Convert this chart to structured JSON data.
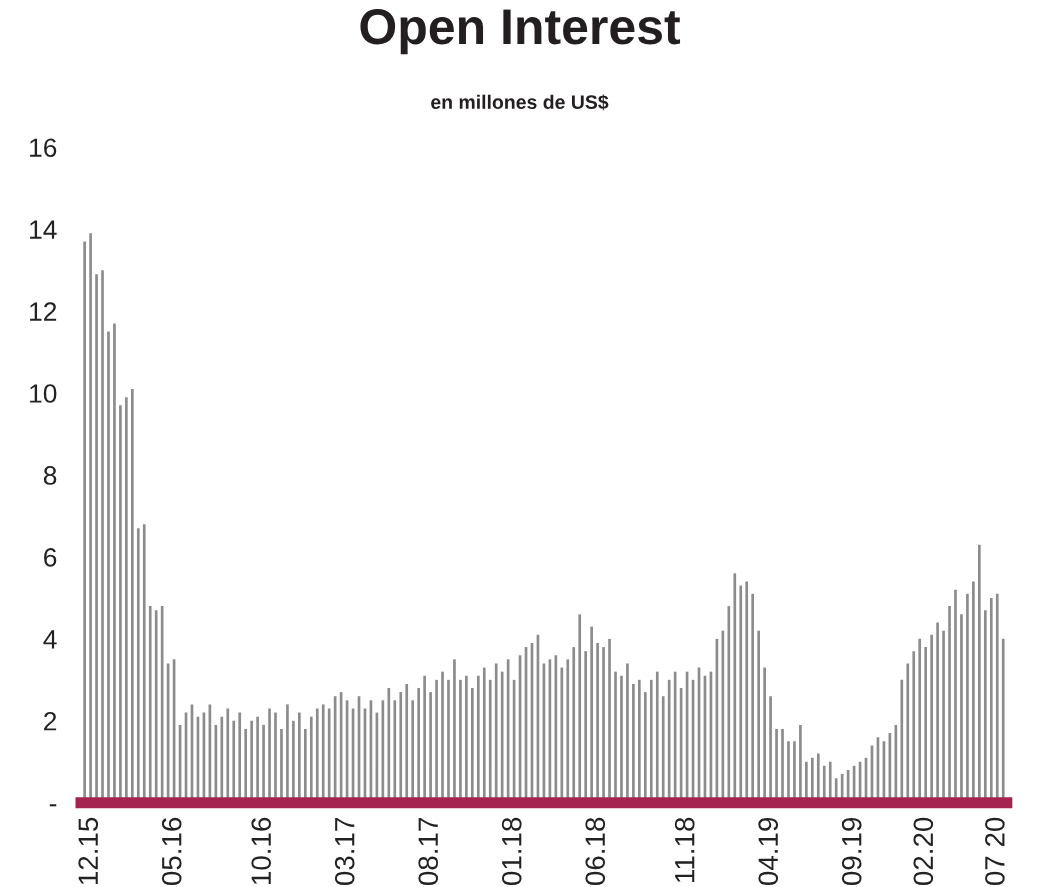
{
  "chart_data": {
    "type": "bar",
    "title": "Open Interest",
    "subtitle": "en millones de US$",
    "categories": [
      null,
      "12.15",
      null,
      null,
      null,
      null,
      null,
      null,
      null,
      null,
      null,
      null,
      null,
      null,
      null,
      "05.16",
      null,
      null,
      null,
      null,
      null,
      null,
      null,
      null,
      null,
      null,
      null,
      null,
      null,
      null,
      "10.16",
      null,
      null,
      null,
      null,
      null,
      null,
      null,
      null,
      null,
      null,
      null,
      null,
      null,
      "03.17",
      null,
      null,
      null,
      null,
      null,
      null,
      null,
      null,
      null,
      null,
      null,
      null,
      null,
      "08.17",
      null,
      null,
      null,
      null,
      null,
      null,
      null,
      null,
      null,
      null,
      null,
      null,
      null,
      "01.18",
      null,
      null,
      null,
      null,
      null,
      null,
      null,
      null,
      null,
      null,
      null,
      null,
      null,
      "06.18",
      null,
      null,
      null,
      null,
      null,
      null,
      null,
      null,
      null,
      null,
      null,
      null,
      null,
      null,
      "11.18",
      null,
      null,
      null,
      null,
      null,
      null,
      null,
      null,
      null,
      null,
      null,
      null,
      null,
      "04.19",
      null,
      null,
      null,
      null,
      null,
      null,
      null,
      null,
      null,
      null,
      null,
      null,
      null,
      "09.19",
      null,
      null,
      null,
      null,
      null,
      null,
      null,
      null,
      null,
      null,
      null,
      "02.20",
      null,
      null,
      null,
      null,
      null,
      null,
      null,
      null,
      null,
      null,
      null,
      "07 20",
      null
    ],
    "values": [
      13.7,
      13.9,
      12.9,
      13.0,
      11.5,
      11.7,
      9.7,
      9.9,
      10.1,
      6.7,
      6.8,
      4.8,
      4.7,
      4.8,
      3.4,
      3.5,
      1.9,
      2.2,
      2.4,
      2.1,
      2.2,
      2.4,
      1.9,
      2.1,
      2.3,
      2.0,
      2.2,
      1.8,
      2.0,
      2.1,
      1.9,
      2.3,
      2.2,
      1.8,
      2.4,
      2.0,
      2.2,
      1.8,
      2.1,
      2.3,
      2.4,
      2.3,
      2.6,
      2.7,
      2.5,
      2.3,
      2.6,
      2.3,
      2.5,
      2.2,
      2.5,
      2.8,
      2.5,
      2.7,
      2.9,
      2.5,
      2.8,
      3.1,
      2.7,
      3.0,
      3.2,
      3.0,
      3.5,
      3.0,
      3.1,
      2.8,
      3.1,
      3.3,
      3.0,
      3.4,
      3.2,
      3.5,
      3.0,
      3.6,
      3.8,
      3.9,
      4.1,
      3.4,
      3.5,
      3.6,
      3.3,
      3.5,
      3.8,
      4.6,
      3.7,
      4.3,
      3.9,
      3.8,
      4.0,
      3.2,
      3.1,
      3.4,
      2.9,
      3.0,
      2.7,
      3.0,
      3.2,
      2.6,
      3.0,
      3.2,
      2.8,
      3.2,
      3.0,
      3.3,
      3.1,
      3.2,
      4.0,
      4.2,
      4.8,
      5.6,
      5.3,
      5.4,
      5.1,
      4.2,
      3.3,
      2.6,
      1.8,
      1.8,
      1.5,
      1.5,
      1.9,
      1.0,
      1.1,
      1.2,
      0.9,
      1.0,
      0.6,
      0.7,
      0.8,
      0.9,
      1.0,
      1.1,
      1.4,
      1.6,
      1.5,
      1.7,
      1.9,
      3.0,
      3.4,
      3.7,
      4.0,
      3.8,
      4.1,
      4.4,
      4.2,
      4.8,
      5.2,
      4.6,
      5.1,
      5.4,
      6.3,
      4.7,
      5.0,
      5.1,
      4.0
    ],
    "color": "#8c8c8c",
    "ylim": [
      0,
      16
    ],
    "yticks": [
      {
        "value": 0,
        "label": "-"
      },
      2,
      4,
      6,
      8,
      10,
      12,
      14,
      16
    ],
    "grid": false,
    "legend": false
  }
}
